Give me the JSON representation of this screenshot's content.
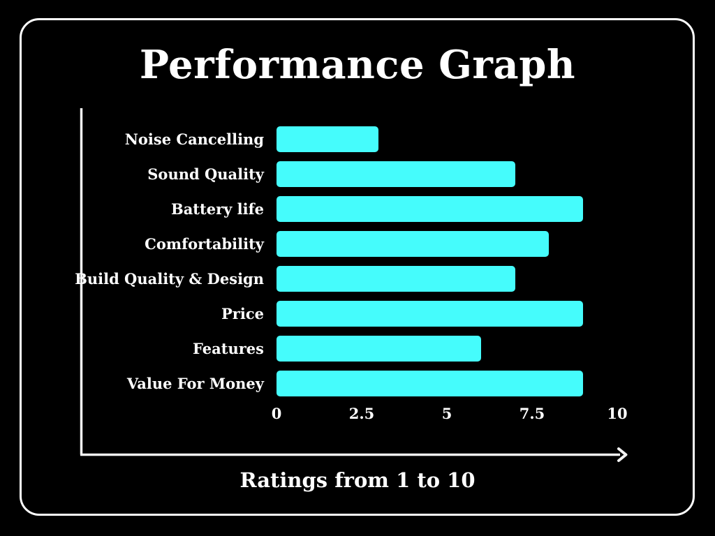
{
  "header": {
    "title": "Performance Graph"
  },
  "chart_data": {
    "type": "bar",
    "orientation": "horizontal",
    "title": "Performance Graph",
    "xlabel": "Ratings from 1 to 10",
    "categories": [
      "Noise Cancelling",
      "Sound Quality",
      "Battery life",
      "Comfortability",
      "Build Quality & Design",
      "Price",
      "Features",
      "Value For Money"
    ],
    "values": [
      3,
      7,
      9,
      8,
      7,
      9,
      6,
      9
    ],
    "x_ticks": [
      "0",
      "2.5",
      "5",
      "7.5",
      "10"
    ],
    "xlim": [
      0,
      10
    ],
    "grid": false,
    "legend": "none",
    "bar_color": "#45FCFC",
    "axis_color": "#FFFFFF",
    "background_color": "#000000",
    "text_color": "#FFFFFF"
  }
}
